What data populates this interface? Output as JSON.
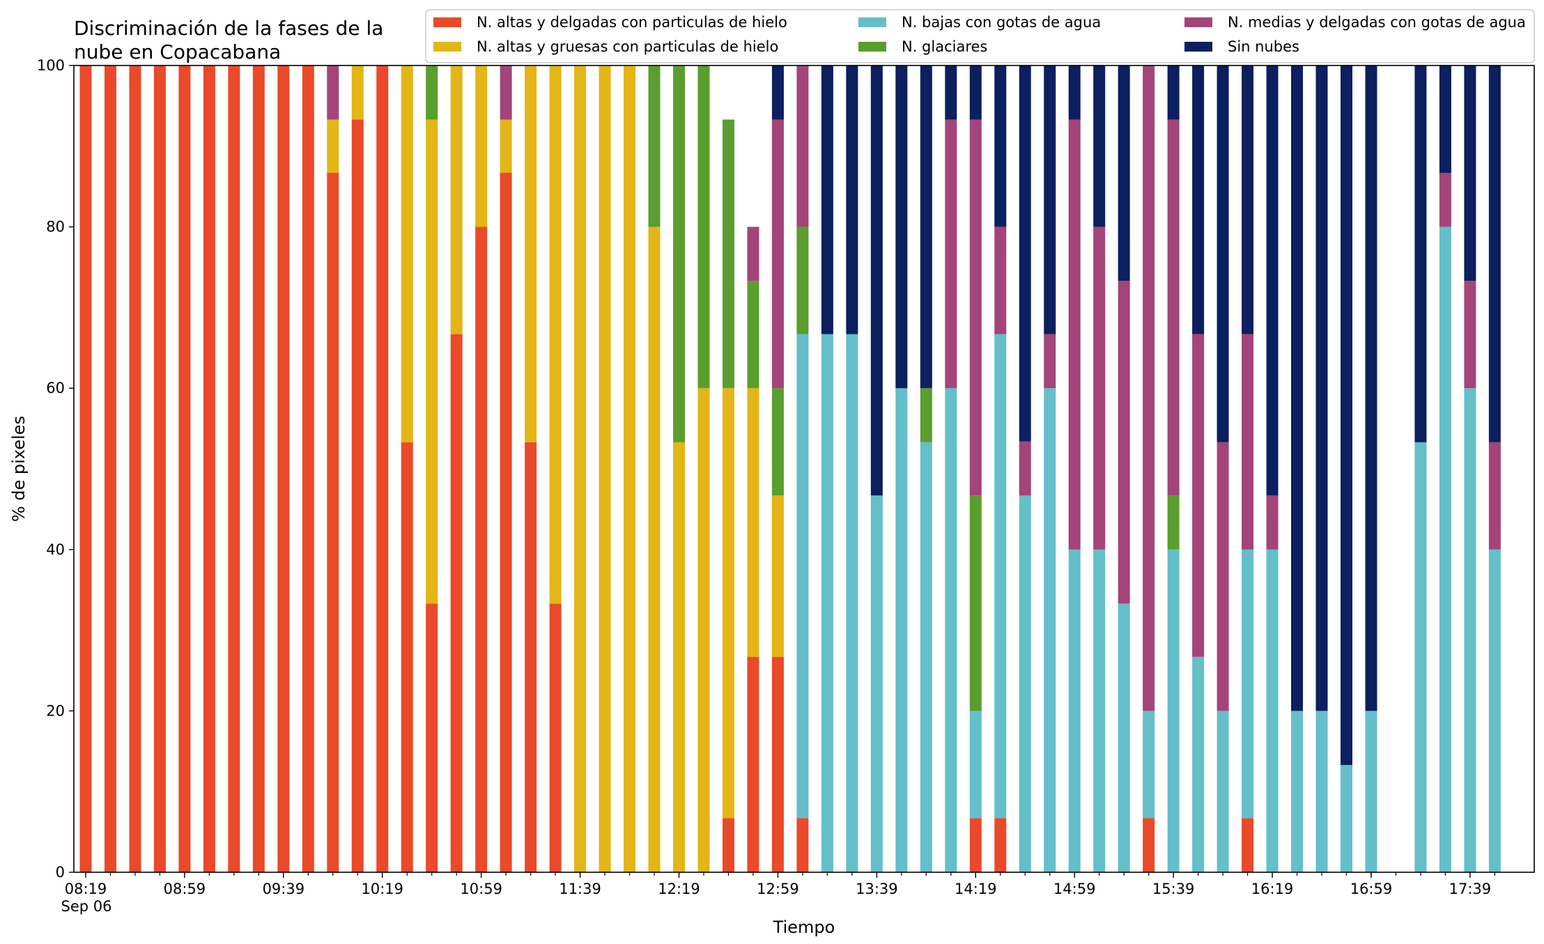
{
  "chart_data": {
    "type": "bar",
    "stacked": true,
    "title_lines": [
      "Discriminación de la fases de la",
      "nube en Copacabana"
    ],
    "xlabel": "Tiempo",
    "ylabel": "% de pixeles",
    "ylim": [
      0,
      100
    ],
    "yticks": [
      "0",
      "20",
      "40",
      "60",
      "80",
      "100"
    ],
    "x_tick_labels": [
      {
        "index": 0,
        "label": "08:19"
      },
      {
        "index": 4,
        "label": "08:59"
      },
      {
        "index": 8,
        "label": "09:39"
      },
      {
        "index": 12,
        "label": "10:19"
      },
      {
        "index": 16,
        "label": "10:59"
      },
      {
        "index": 20,
        "label": "11:39"
      },
      {
        "index": 24,
        "label": "12:19"
      },
      {
        "index": 28,
        "label": "12:59"
      },
      {
        "index": 32,
        "label": "13:39"
      },
      {
        "index": 36,
        "label": "14:19"
      },
      {
        "index": 40,
        "label": "14:59"
      },
      {
        "index": 44,
        "label": "15:39"
      },
      {
        "index": 48,
        "label": "16:19"
      },
      {
        "index": 52,
        "label": "16:59"
      },
      {
        "index": 56,
        "label": "17:39"
      }
    ],
    "x_date_label": "Sep 06",
    "category_count": 58,
    "grid": false,
    "legend_position": "top-right",
    "series": [
      {
        "name": "N. altas y delgadas con particulas de hielo",
        "color": "#ea4a2a",
        "values": [
          100,
          100,
          100,
          100,
          100,
          100,
          100,
          100,
          100,
          100,
          86.7,
          93.3,
          100,
          53.3,
          33.3,
          66.7,
          80,
          86.7,
          53.3,
          33.3,
          0,
          0,
          0,
          0,
          0,
          0,
          6.7,
          26.7,
          26.7,
          6.7,
          0,
          0,
          0,
          0,
          0,
          0,
          6.7,
          6.7,
          0,
          0,
          0,
          0,
          0,
          6.7,
          0,
          0,
          0,
          6.7,
          0,
          0,
          0,
          0,
          0,
          0,
          0,
          0,
          0,
          0
        ]
      },
      {
        "name": "N. altas y gruesas con particulas de hielo",
        "color": "#e3b516",
        "values": [
          0,
          0,
          0,
          0,
          0,
          0,
          0,
          0,
          0,
          0,
          6.6,
          6.7,
          0,
          46.7,
          60,
          33.3,
          20,
          6.6,
          46.7,
          66.7,
          100,
          100,
          100,
          80,
          53.3,
          60,
          53.3,
          33.3,
          20,
          0,
          0,
          0,
          0,
          0,
          0,
          0,
          0,
          0,
          0,
          0,
          0,
          0,
          0,
          0,
          0,
          0,
          0,
          0,
          0,
          0,
          0,
          0,
          0,
          0,
          0,
          0,
          0,
          0
        ]
      },
      {
        "name": "N. bajas con gotas de agua",
        "color": "#64bfca",
        "values": [
          0,
          0,
          0,
          0,
          0,
          0,
          0,
          0,
          0,
          0,
          0,
          0,
          0,
          0,
          0,
          0,
          0,
          0,
          0,
          0,
          0,
          0,
          0,
          0,
          0,
          0,
          0,
          0,
          0,
          60,
          66.7,
          66.7,
          46.7,
          60,
          53.3,
          60,
          13.3,
          60,
          46.7,
          60,
          40,
          40,
          33.3,
          13.3,
          40,
          26.7,
          20,
          33.3,
          40,
          20,
          20,
          13.3,
          20,
          0,
          53.3,
          80,
          60,
          40
        ]
      },
      {
        "name": "N. glaciares",
        "color": "#5a9e2e",
        "values": [
          0,
          0,
          0,
          0,
          0,
          0,
          0,
          0,
          0,
          0,
          0,
          0,
          0,
          0,
          6.7,
          0,
          0,
          0,
          0,
          0,
          0,
          0,
          0,
          20,
          46.7,
          40,
          33.3,
          13.3,
          13.3,
          13.3,
          0,
          0,
          0,
          0,
          6.7,
          0,
          26.7,
          0,
          0,
          0,
          0,
          0,
          0,
          0,
          6.7,
          0,
          0,
          0,
          0,
          0,
          0,
          0,
          0,
          0,
          0,
          0,
          0,
          0
        ]
      },
      {
        "name": "N. medias y delgadas con gotas de agua",
        "color": "#a3447a",
        "values": [
          0,
          0,
          0,
          0,
          0,
          0,
          0,
          0,
          0,
          0,
          6.7,
          0,
          0,
          0,
          0,
          0,
          0,
          6.7,
          0,
          0,
          0,
          0,
          0,
          0,
          0,
          0,
          0,
          6.7,
          33.3,
          20,
          0,
          0,
          0,
          0,
          0,
          33.3,
          46.6,
          13.3,
          6.7,
          6.7,
          53.3,
          40,
          40,
          80,
          46.6,
          40,
          33.3,
          26.7,
          6.7,
          0,
          0,
          0,
          0,
          0,
          0,
          6.7,
          13.3,
          13.3
        ]
      },
      {
        "name": "Sin nubes",
        "color": "#0c1f5e",
        "values": [
          0,
          0,
          0,
          0,
          0,
          0,
          0,
          0,
          0,
          0,
          0,
          0,
          0,
          0,
          0,
          0,
          0,
          0,
          0,
          0,
          0,
          0,
          0,
          0,
          0,
          0,
          0,
          0,
          6.7,
          0,
          33.3,
          33.3,
          53.3,
          40,
          40,
          6.7,
          6.7,
          20,
          46.6,
          33.3,
          6.7,
          20,
          26.7,
          0,
          6.7,
          33.3,
          46.7,
          33.3,
          53.3,
          80,
          80,
          86.7,
          80,
          0,
          46.7,
          13.3,
          26.7,
          46.7
        ]
      }
    ]
  }
}
